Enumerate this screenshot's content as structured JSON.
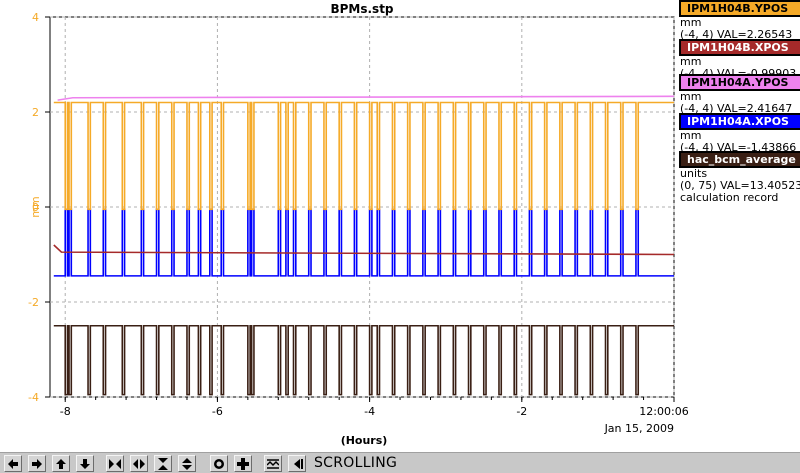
{
  "window": {
    "title": "BPMs.stp"
  },
  "chart_data": {
    "type": "line",
    "title": "BPMs.stp",
    "ylabel": "mm",
    "xlabel": "(Hours)",
    "xlim": [
      -8.2,
      0
    ],
    "ylim": [
      -4,
      4
    ],
    "x_ticks": [
      "-8",
      "-6",
      "-4",
      "-2",
      "12:00:06"
    ],
    "x_tick_values": [
      -8,
      -6,
      -4,
      -2,
      0
    ],
    "y_ticks": [
      "4",
      "2",
      "0",
      "-2",
      "-4"
    ],
    "y_tick_values": [
      4,
      2,
      0,
      -2,
      -4
    ],
    "date_label": "Jan 15, 2009",
    "grid": true,
    "series": [
      {
        "name": "IPM1H04B.YPOS",
        "color": "#f5aa28",
        "baseline": 2.2,
        "dropout": -0.05,
        "units": "mm",
        "range": "(-4, 4)",
        "value": "VAL=2.26543"
      },
      {
        "name": "IPM1H04B.XPOS",
        "color": "#a52a2a",
        "baseline": -1.0,
        "units": "mm",
        "range": "(-4, 4)",
        "value": "VAL=-0.99903"
      },
      {
        "name": "IPM1H04A.YPOS",
        "color": "#ee82ee",
        "baseline": 2.33,
        "units": "mm",
        "range": "(-4, 4)",
        "value": "VAL=2.41647"
      },
      {
        "name": "IPM1H04A.XPOS",
        "color": "#0000ff",
        "baseline": -1.45,
        "spike_to": -0.05,
        "units": "mm",
        "range": "(-4, 4)",
        "value": "VAL=-1.43866"
      },
      {
        "name": "hac_bcm_average",
        "color": "#3a1f14",
        "baseline": -2.5,
        "dropout": -3.95,
        "units": "units",
        "range": "(0, 75)",
        "value": "VAL=13.40523",
        "extra": "calculation record"
      }
    ],
    "trip_times": [
      -8.0,
      -7.95,
      -7.7,
      -7.5,
      -7.25,
      -7.0,
      -6.8,
      -6.6,
      -6.4,
      -6.25,
      -6.1,
      -5.95,
      -5.6,
      -5.55,
      -5.2,
      -5.1,
      -5.0,
      -4.8,
      -4.6,
      -4.4,
      -4.2,
      -4.0,
      -3.9,
      -3.7,
      -3.5,
      -3.3,
      -3.1,
      -2.9,
      -2.7,
      -2.5,
      -2.3,
      -2.1,
      -1.9,
      -1.7,
      -1.5,
      -1.3,
      -1.1,
      -0.9,
      -0.7,
      -0.5
    ]
  },
  "toolbar": {
    "status": "SCROLLING",
    "buttons": [
      {
        "name": "scroll-left-button",
        "icon": "arrow-left-icon"
      },
      {
        "name": "scroll-right-button",
        "icon": "arrow-right-icon"
      },
      {
        "name": "scroll-up-button",
        "icon": "arrow-up-icon"
      },
      {
        "name": "scroll-down-button",
        "icon": "arrow-down-icon"
      },
      {
        "name": "zoom-in-horizontal-button",
        "icon": "zoom-in-horizontal-icon"
      },
      {
        "name": "zoom-out-horizontal-button",
        "icon": "zoom-out-horizontal-icon"
      },
      {
        "name": "zoom-in-vertical-button",
        "icon": "zoom-in-vertical-icon"
      },
      {
        "name": "zoom-out-vertical-button",
        "icon": "zoom-out-vertical-icon"
      },
      {
        "name": "stop-button",
        "icon": "record-icon"
      },
      {
        "name": "add-button",
        "icon": "plus-icon"
      },
      {
        "name": "autoscale-button",
        "icon": "autoscale-icon"
      },
      {
        "name": "play-scroll-button",
        "icon": "scroll-play-icon"
      }
    ]
  }
}
